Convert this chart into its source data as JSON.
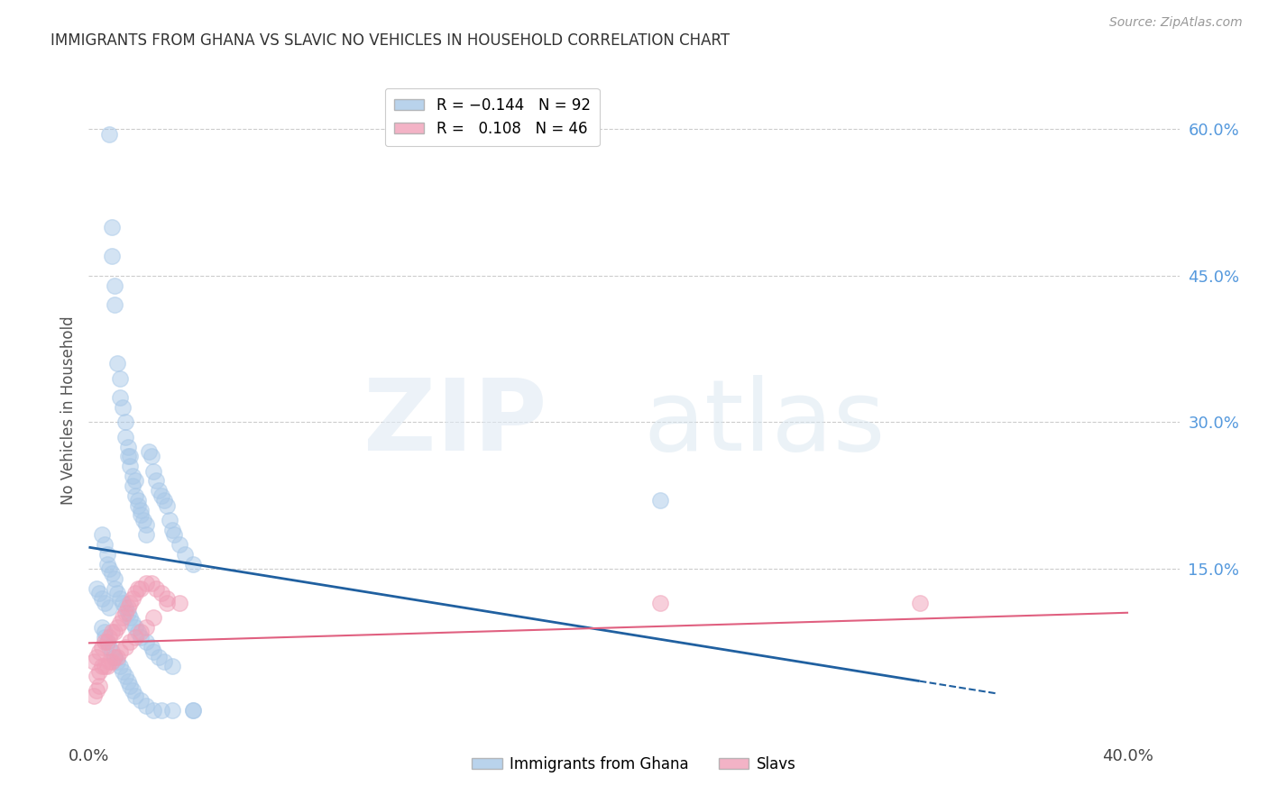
{
  "title": "IMMIGRANTS FROM GHANA VS SLAVIC NO VEHICLES IN HOUSEHOLD CORRELATION CHART",
  "source": "Source: ZipAtlas.com",
  "ylabel": "No Vehicles in Household",
  "xlim": [
    0.0,
    0.42
  ],
  "ylim": [
    -0.025,
    0.65
  ],
  "blue_color": "#A8C8E8",
  "pink_color": "#F0A0B8",
  "trend_blue": "#2060A0",
  "trend_pink": "#E06080",
  "right_axis_color": "#5599DD",
  "background_color": "#ffffff",
  "grid_color": "#CCCCCC",
  "ghana_x": [
    0.008,
    0.009,
    0.009,
    0.01,
    0.01,
    0.011,
    0.012,
    0.012,
    0.013,
    0.014,
    0.014,
    0.015,
    0.015,
    0.016,
    0.016,
    0.017,
    0.017,
    0.018,
    0.018,
    0.019,
    0.019,
    0.02,
    0.02,
    0.021,
    0.022,
    0.022,
    0.023,
    0.024,
    0.025,
    0.026,
    0.027,
    0.028,
    0.029,
    0.03,
    0.031,
    0.032,
    0.033,
    0.035,
    0.037,
    0.04,
    0.005,
    0.006,
    0.007,
    0.007,
    0.008,
    0.009,
    0.01,
    0.01,
    0.011,
    0.012,
    0.013,
    0.014,
    0.015,
    0.016,
    0.017,
    0.018,
    0.019,
    0.02,
    0.022,
    0.024,
    0.025,
    0.027,
    0.029,
    0.032,
    0.005,
    0.006,
    0.006,
    0.007,
    0.008,
    0.009,
    0.01,
    0.011,
    0.012,
    0.013,
    0.014,
    0.015,
    0.016,
    0.017,
    0.018,
    0.02,
    0.022,
    0.025,
    0.028,
    0.032,
    0.04,
    0.04,
    0.22,
    0.003,
    0.004,
    0.005,
    0.006,
    0.008
  ],
  "ghana_y": [
    0.595,
    0.5,
    0.47,
    0.44,
    0.42,
    0.36,
    0.345,
    0.325,
    0.315,
    0.3,
    0.285,
    0.275,
    0.265,
    0.265,
    0.255,
    0.245,
    0.235,
    0.24,
    0.225,
    0.22,
    0.215,
    0.21,
    0.205,
    0.2,
    0.195,
    0.185,
    0.27,
    0.265,
    0.25,
    0.24,
    0.23,
    0.225,
    0.22,
    0.215,
    0.2,
    0.19,
    0.185,
    0.175,
    0.165,
    0.155,
    0.185,
    0.175,
    0.165,
    0.155,
    0.15,
    0.145,
    0.14,
    0.13,
    0.125,
    0.12,
    0.115,
    0.11,
    0.105,
    0.1,
    0.095,
    0.09,
    0.085,
    0.08,
    0.075,
    0.07,
    0.065,
    0.06,
    0.055,
    0.05,
    0.09,
    0.085,
    0.08,
    0.075,
    0.07,
    0.065,
    0.06,
    0.055,
    0.05,
    0.045,
    0.04,
    0.035,
    0.03,
    0.025,
    0.02,
    0.015,
    0.01,
    0.005,
    0.005,
    0.005,
    0.005,
    0.005,
    0.22,
    0.13,
    0.125,
    0.12,
    0.115,
    0.11
  ],
  "slavs_x": [
    0.002,
    0.003,
    0.004,
    0.005,
    0.006,
    0.007,
    0.008,
    0.009,
    0.01,
    0.011,
    0.012,
    0.013,
    0.014,
    0.015,
    0.016,
    0.017,
    0.018,
    0.019,
    0.02,
    0.022,
    0.024,
    0.026,
    0.028,
    0.03,
    0.003,
    0.004,
    0.005,
    0.006,
    0.007,
    0.008,
    0.009,
    0.01,
    0.011,
    0.012,
    0.014,
    0.016,
    0.018,
    0.02,
    0.022,
    0.025,
    0.03,
    0.035,
    0.22,
    0.32,
    0.002,
    0.003,
    0.004
  ],
  "slavs_y": [
    0.055,
    0.06,
    0.065,
    0.07,
    0.075,
    0.075,
    0.08,
    0.085,
    0.085,
    0.09,
    0.095,
    0.1,
    0.105,
    0.11,
    0.115,
    0.12,
    0.125,
    0.13,
    0.13,
    0.135,
    0.135,
    0.13,
    0.125,
    0.12,
    0.04,
    0.045,
    0.05,
    0.05,
    0.05,
    0.055,
    0.055,
    0.06,
    0.06,
    0.065,
    0.07,
    0.075,
    0.08,
    0.085,
    0.09,
    0.1,
    0.115,
    0.115,
    0.115,
    0.115,
    0.02,
    0.025,
    0.03
  ],
  "blue_trend_x": [
    0.0,
    0.32
  ],
  "blue_trend_y": [
    0.172,
    0.035
  ],
  "pink_trend_x": [
    0.0,
    0.4
  ],
  "pink_trend_y": [
    0.074,
    0.105
  ]
}
